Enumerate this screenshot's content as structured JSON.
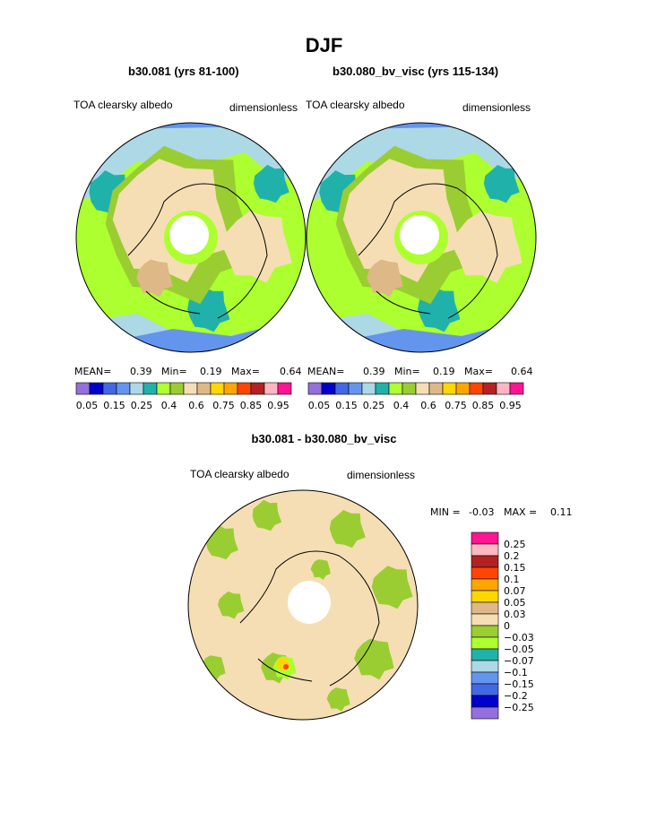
{
  "page_title": "DJF",
  "panels": [
    {
      "title": "b30.081 (yrs 81-100)",
      "left_label": "TOA clearsky albedo",
      "right_label": "dimensionless",
      "stats": {
        "mean_label": "MEAN=",
        "mean": "0.39",
        "min_label": "Min=",
        "min": "0.19",
        "max_label": "Max=",
        "max": "0.64"
      }
    },
    {
      "title": "b30.080_bv_visc (yrs 115-134)",
      "left_label": "TOA clearsky albedo",
      "right_label": "dimensionless",
      "stats": {
        "mean_label": "MEAN=",
        "mean": "0.39",
        "min_label": "Min=",
        "min": "0.19",
        "max_label": "Max=",
        "max": "0.64"
      }
    }
  ],
  "diff_panel": {
    "title": "b30.081 - b30.080_bv_visc",
    "left_label": "TOA clearsky albedo",
    "right_label": "dimensionless",
    "stats": {
      "min_label": "MIN =",
      "min": "-0.03",
      "max_label": "MAX =",
      "max": "0.11"
    }
  },
  "chart_data": [
    {
      "type": "heatmap",
      "title": "b30.081 (yrs 81-100)",
      "projection": "north polar stereographic",
      "variable": "TOA clearsky albedo",
      "units": "dimensionless",
      "mean": 0.39,
      "min": 0.19,
      "max": 0.64,
      "colorbar": {
        "orientation": "horizontal",
        "levels": [
          "0.05",
          "0.1",
          "0.15",
          "0.2",
          "0.25",
          "0.3",
          "0.35",
          "0.4",
          "0.5",
          "0.6",
          "0.7",
          "0.75",
          "0.8",
          "0.85",
          "0.9",
          "0.95"
        ],
        "tick_labels": [
          "0.05",
          "0.15",
          "0.25",
          "0.4",
          "0.6",
          "0.75",
          "0.85",
          "0.95"
        ],
        "colors": [
          "#9370db",
          "#0000cd",
          "#4169e1",
          "#6495ed",
          "#add8e6",
          "#20b2aa",
          "#adff2f",
          "#9acd32",
          "#f5deb3",
          "#deb887",
          "#ffd700",
          "#ffa500",
          "#ff4500",
          "#b22222",
          "#ffb6c1",
          "#ff1493"
        ]
      }
    },
    {
      "type": "heatmap",
      "title": "b30.080_bv_visc (yrs 115-134)",
      "projection": "north polar stereographic",
      "variable": "TOA clearsky albedo",
      "units": "dimensionless",
      "mean": 0.39,
      "min": 0.19,
      "max": 0.64,
      "colorbar": {
        "orientation": "horizontal",
        "tick_labels": [
          "0.05",
          "0.15",
          "0.25",
          "0.4",
          "0.6",
          "0.75",
          "0.85",
          "0.95"
        ],
        "colors": [
          "#9370db",
          "#0000cd",
          "#4169e1",
          "#6495ed",
          "#add8e6",
          "#20b2aa",
          "#adff2f",
          "#9acd32",
          "#f5deb3",
          "#deb887",
          "#ffd700",
          "#ffa500",
          "#ff4500",
          "#b22222",
          "#ffb6c1",
          "#ff1493"
        ]
      }
    },
    {
      "type": "heatmap",
      "title": "b30.081 - b30.080_bv_visc",
      "projection": "north polar stereographic",
      "variable": "TOA clearsky albedo",
      "units": "dimensionless",
      "min": -0.03,
      "max": 0.11,
      "colorbar": {
        "orientation": "vertical",
        "tick_labels": [
          "0.25",
          "0.2",
          "0.15",
          "0.1",
          "0.07",
          "0.05",
          "0.03",
          "0",
          "−0.03",
          "−0.05",
          "−0.07",
          "−0.1",
          "−0.15",
          "−0.2",
          "−0.25"
        ],
        "colors": [
          "#ff1493",
          "#ffb6c1",
          "#b22222",
          "#ff4500",
          "#ffa500",
          "#ffd700",
          "#deb887",
          "#f5deb3",
          "#9acd32",
          "#adff2f",
          "#20b2aa",
          "#add8e6",
          "#6495ed",
          "#4169e1",
          "#0000cd",
          "#9370db"
        ]
      }
    }
  ]
}
